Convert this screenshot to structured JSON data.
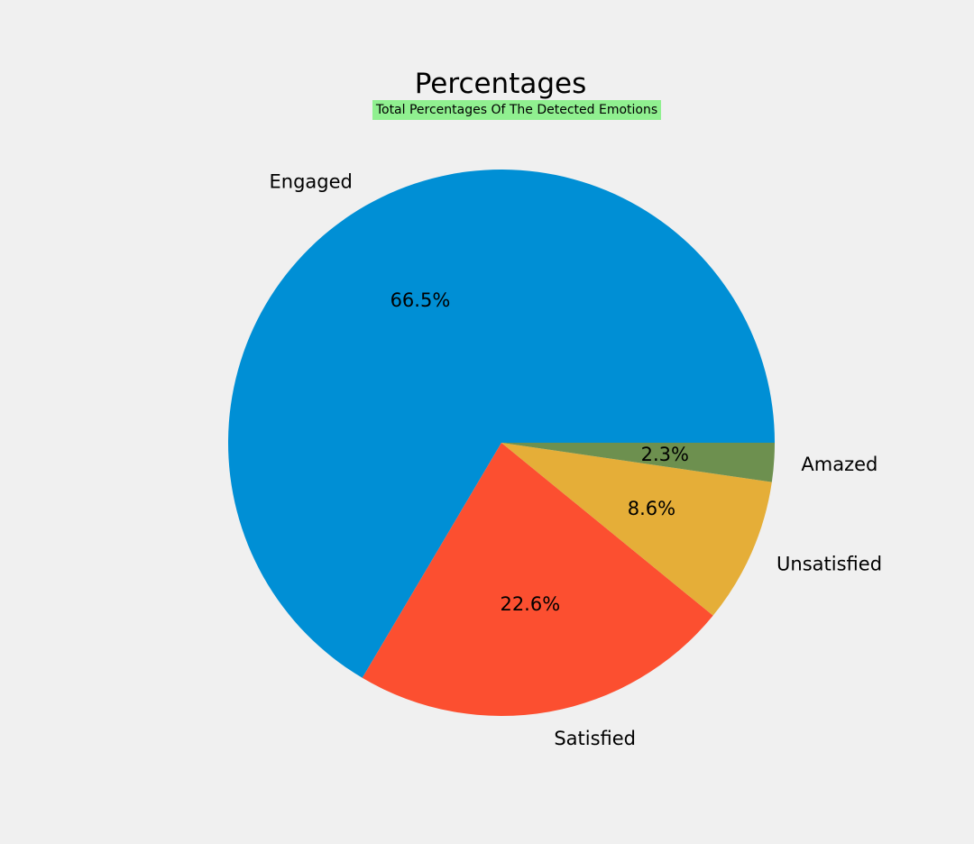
{
  "chart_data": {
    "type": "pie",
    "title": "Percentages",
    "subtitle": "Total Percentages Of The Detected Emotions",
    "subtitle_background": "#90f090",
    "slices": [
      {
        "label": "Engaged",
        "value": 66.5,
        "pct_label": "66.5%",
        "color": "#008fd5"
      },
      {
        "label": "Satisfied",
        "value": 22.6,
        "pct_label": "22.6%",
        "color": "#fc4f30"
      },
      {
        "label": "Unsatisfied",
        "value": 8.6,
        "pct_label": "8.6%",
        "color": "#e5ae38"
      },
      {
        "label": "Amazed",
        "value": 2.3,
        "pct_label": "2.3%",
        "color": "#6d904f"
      }
    ],
    "start_angle_deg": 0,
    "direction": "counterclockwise",
    "legend": "none"
  }
}
